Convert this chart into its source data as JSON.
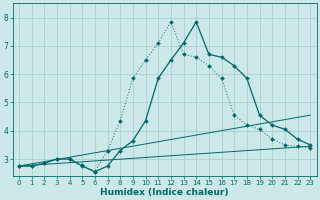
{
  "xlabel": "Humidex (Indice chaleur)",
  "xlim": [
    -0.5,
    23.5
  ],
  "ylim": [
    2.4,
    8.5
  ],
  "yticks": [
    3,
    4,
    5,
    6,
    7,
    8
  ],
  "xticks": [
    0,
    1,
    2,
    3,
    4,
    5,
    6,
    7,
    8,
    9,
    10,
    11,
    12,
    13,
    14,
    15,
    16,
    17,
    18,
    19,
    20,
    21,
    22,
    23
  ],
  "bg_color": "#cce8e8",
  "grid_color": "#aacfcf",
  "line_color": "#006868",
  "series": [
    {
      "x": [
        0,
        1,
        2,
        3,
        4,
        5,
        6,
        7,
        8,
        9,
        10,
        11,
        12,
        13,
        14,
        15,
        16,
        17,
        18,
        19,
        20,
        21,
        22,
        23
      ],
      "y": [
        2.75,
        2.75,
        2.85,
        3.0,
        3.0,
        2.75,
        2.55,
        2.75,
        3.3,
        3.65,
        4.35,
        5.85,
        6.5,
        7.1,
        7.85,
        6.7,
        6.6,
        6.3,
        5.85,
        4.55,
        4.2,
        4.05,
        3.7,
        3.5
      ],
      "style": "-",
      "marker": "D",
      "markersize": 2.0
    },
    {
      "x": [
        0,
        1,
        2,
        3,
        4,
        5,
        6,
        7,
        8,
        9,
        10,
        11,
        12,
        13,
        14,
        15,
        16,
        17,
        18,
        19,
        20,
        21,
        22,
        23
      ],
      "y": [
        2.75,
        2.75,
        2.85,
        3.0,
        3.0,
        2.8,
        2.55,
        3.3,
        4.35,
        5.85,
        6.5,
        7.1,
        7.85,
        6.7,
        6.6,
        6.3,
        5.85,
        4.55,
        4.2,
        4.05,
        3.7,
        3.5,
        3.45,
        3.4
      ],
      "style": ":",
      "marker": "D",
      "markersize": 2.0
    },
    {
      "x": [
        0,
        23
      ],
      "y": [
        2.75,
        4.55
      ],
      "style": "-",
      "marker": null,
      "markersize": 0
    },
    {
      "x": [
        0,
        23
      ],
      "y": [
        2.75,
        3.45
      ],
      "style": "-",
      "marker": null,
      "markersize": 0
    }
  ]
}
